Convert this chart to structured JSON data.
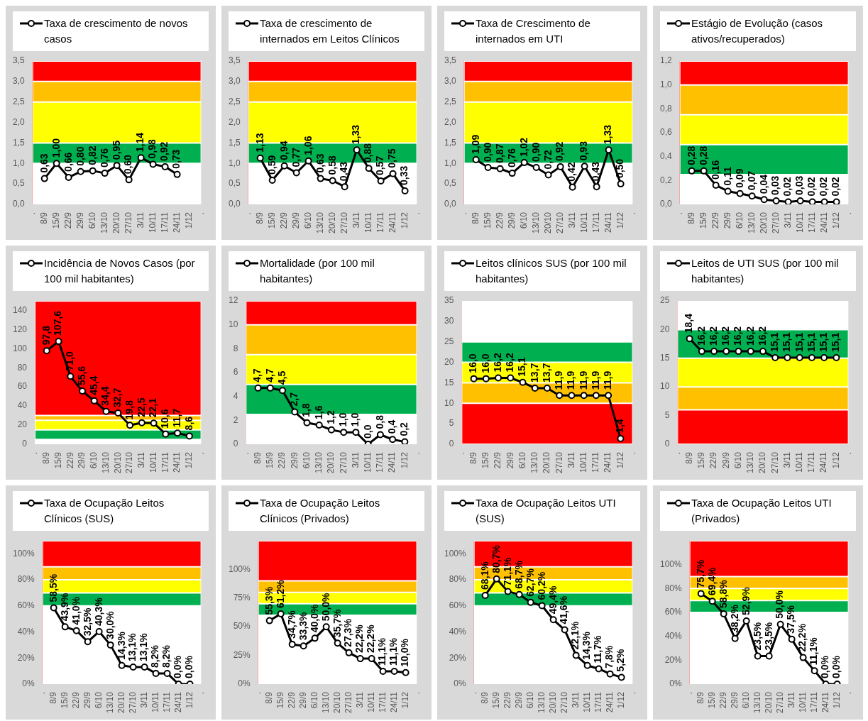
{
  "chart_data": [
    {
      "type": "line",
      "legend": "top",
      "marker": "circle",
      "categories": [
        ".",
        "8/9",
        "15/9",
        "22/9",
        "29/9",
        "6/10",
        "13/10",
        "20/10",
        "27/10",
        "3/11",
        "10/11",
        "17/11",
        "24/11",
        "1/12",
        "."
      ],
      "series": [
        {
          "name": "Taxa de crescimento de novos casos",
          "color": "#000000",
          "values": [
            null,
            0.63,
            1.0,
            0.66,
            0.8,
            0.82,
            0.76,
            0.95,
            0.6,
            1.14,
            0.98,
            0.92,
            0.73,
            null,
            null
          ],
          "value_labels": [
            null,
            "0,63",
            "1,00",
            "0,66",
            "0,80",
            "0,82",
            "0,76",
            "0,95",
            "0,60",
            "1,14",
            "0,98",
            "0,92",
            "0,73",
            null,
            null
          ]
        }
      ],
      "ylim": [
        0,
        3.5
      ],
      "yticks": [
        {
          "value": 0,
          "label": "0,0"
        },
        {
          "value": 0.5,
          "label": "0,5"
        },
        {
          "value": 1,
          "label": "1,0"
        },
        {
          "value": 1.5,
          "label": "1,5"
        },
        {
          "value": 2,
          "label": "2,0"
        },
        {
          "value": 2.5,
          "label": "2,5"
        },
        {
          "value": 3,
          "label": "3,0"
        },
        {
          "value": 3.5,
          "label": "3,5"
        }
      ],
      "bands": [
        {
          "axis": "y",
          "from": 3,
          "to": 3.5,
          "color": "#ff0000"
        },
        {
          "axis": "y",
          "from": 2.5,
          "to": 3,
          "color": "#ffc000"
        },
        {
          "axis": "y",
          "from": 1.5,
          "to": 2.5,
          "color": "#ffff00"
        },
        {
          "axis": "y",
          "from": 1,
          "to": 1.5,
          "color": "#00b050"
        }
      ]
    },
    {
      "type": "line",
      "legend": "top",
      "marker": "circle",
      "categories": [
        ".",
        "8/9",
        "15/9",
        "22/9",
        "29/9",
        "6/10",
        "13/10",
        "20/10",
        "27/10",
        "3/11",
        "10/11",
        "17/11",
        "24/11",
        "1/12",
        "."
      ],
      "series": [
        {
          "name": "Taxa de crescimento de internados em Leitos Clínicos",
          "color": "#000000",
          "values": [
            null,
            1.13,
            0.59,
            0.94,
            0.77,
            1.06,
            0.63,
            0.58,
            0.43,
            1.33,
            0.88,
            0.57,
            0.75,
            0.33,
            null
          ],
          "value_labels": [
            null,
            "1,13",
            "0,59",
            "0,94",
            "0,77",
            "1,06",
            "0,63",
            "0,58",
            "0,43",
            "1,33",
            "0,88",
            "0,57",
            "0,75",
            "0,33",
            null
          ]
        }
      ],
      "ylim": [
        0,
        3.5
      ],
      "yticks": [
        {
          "value": 0,
          "label": "0,0"
        },
        {
          "value": 0.5,
          "label": "0,5"
        },
        {
          "value": 1,
          "label": "1,0"
        },
        {
          "value": 1.5,
          "label": "1,5"
        },
        {
          "value": 2,
          "label": "2,0"
        },
        {
          "value": 2.5,
          "label": "2,5"
        },
        {
          "value": 3,
          "label": "3,0"
        },
        {
          "value": 3.5,
          "label": "3,5"
        }
      ],
      "bands": [
        {
          "axis": "y",
          "from": 3,
          "to": 3.5,
          "color": "#ff0000"
        },
        {
          "axis": "y",
          "from": 2.5,
          "to": 3,
          "color": "#ffc000"
        },
        {
          "axis": "y",
          "from": 1.5,
          "to": 2.5,
          "color": "#ffff00"
        },
        {
          "axis": "y",
          "from": 1,
          "to": 1.5,
          "color": "#00b050"
        }
      ]
    },
    {
      "type": "line",
      "legend": "top",
      "marker": "circle",
      "categories": [
        ".",
        "8/9",
        "15/9",
        "22/9",
        "29/9",
        "6/10",
        "13/10",
        "20/10",
        "27/10",
        "3/11",
        "10/11",
        "17/11",
        "24/11",
        "1/12",
        "."
      ],
      "series": [
        {
          "name": "Taxa de Crescimento de internados em UTI",
          "color": "#000000",
          "values": [
            null,
            1.09,
            0.9,
            0.87,
            0.76,
            1.02,
            0.9,
            0.72,
            0.92,
            0.42,
            0.93,
            0.43,
            1.33,
            0.5,
            null
          ],
          "value_labels": [
            null,
            "1,09",
            "0,90",
            "0,87",
            "0,76",
            "1,02",
            "0,90",
            "0,72",
            "0,92",
            "0,42",
            "0,93",
            "0,43",
            "1,33",
            "0,50",
            null
          ]
        }
      ],
      "ylim": [
        0,
        3.5
      ],
      "yticks": [
        {
          "value": 0,
          "label": "0,0"
        },
        {
          "value": 0.5,
          "label": "0,5"
        },
        {
          "value": 1,
          "label": "1,0"
        },
        {
          "value": 1.5,
          "label": "1,5"
        },
        {
          "value": 2,
          "label": "2,0"
        },
        {
          "value": 2.5,
          "label": "2,5"
        },
        {
          "value": 3,
          "label": "3,0"
        },
        {
          "value": 3.5,
          "label": "3,5"
        }
      ],
      "bands": [
        {
          "axis": "y",
          "from": 3,
          "to": 3.5,
          "color": "#ff0000"
        },
        {
          "axis": "y",
          "from": 2.5,
          "to": 3,
          "color": "#ffc000"
        },
        {
          "axis": "y",
          "from": 1.5,
          "to": 2.5,
          "color": "#ffff00"
        },
        {
          "axis": "y",
          "from": 1,
          "to": 1.5,
          "color": "#00b050"
        }
      ]
    },
    {
      "type": "line",
      "legend": "top",
      "marker": "circle",
      "categories": [
        ".",
        "8/9",
        "15/9",
        "22/9",
        "29/9",
        "6/10",
        "13/10",
        "20/10",
        "27/10",
        "3/11",
        "10/11",
        "17/11",
        "24/11",
        "1/12",
        "."
      ],
      "series": [
        {
          "name": "Estágio de Evolução (casos ativos/recuperados)",
          "color": "#000000",
          "values": [
            null,
            0.28,
            0.28,
            0.16,
            0.11,
            0.09,
            0.07,
            0.04,
            0.03,
            0.02,
            0.03,
            0.02,
            0.02,
            0.02,
            null
          ],
          "value_labels": [
            null,
            "0,28",
            "0,28",
            "0,16",
            "0,11",
            "0,09",
            "0,07",
            "0,04",
            "0,03",
            "0,02",
            "0,03",
            "0,02",
            "0,02",
            "0,02",
            null
          ]
        }
      ],
      "ylim": [
        0,
        1.2
      ],
      "yticks": [
        {
          "value": 0,
          "label": "0,0"
        },
        {
          "value": 0.2,
          "label": "0,2"
        },
        {
          "value": 0.4,
          "label": "0,4"
        },
        {
          "value": 0.6,
          "label": "0,6"
        },
        {
          "value": 0.8,
          "label": "0,8"
        },
        {
          "value": 1,
          "label": "1,0"
        },
        {
          "value": 1.2,
          "label": "1,2"
        }
      ],
      "bands": [
        {
          "axis": "y",
          "from": 1,
          "to": 1.2,
          "color": "#ff0000"
        },
        {
          "axis": "y",
          "from": 0.75,
          "to": 1,
          "color": "#ffc000"
        },
        {
          "axis": "y",
          "from": 0.5,
          "to": 0.75,
          "color": "#ffff00"
        },
        {
          "axis": "y",
          "from": 0.25,
          "to": 0.5,
          "color": "#00b050"
        }
      ]
    },
    {
      "type": "line",
      "legend": "top",
      "marker": "circle",
      "categories": [
        ".",
        "8/9",
        "15/9",
        "22/9",
        "29/9",
        "6/10",
        "13/10",
        "20/10",
        "27/10",
        "3/11",
        "10/11",
        "17/11",
        "24/11",
        "1/12",
        "."
      ],
      "series": [
        {
          "name": "Incidência de Novos Casos (por 100 mil habitantes)",
          "color": "#000000",
          "values": [
            null,
            97.8,
            107.6,
            71.0,
            55.6,
            45.4,
            34.4,
            32.7,
            19.8,
            22.5,
            22.1,
            10.6,
            11.7,
            8.6,
            null
          ],
          "value_labels": [
            null,
            "97,8",
            "107,6",
            "71,0",
            "55,6",
            "45,4",
            "34,4",
            "32,7",
            "19,8",
            "22,5",
            "22,1",
            "10,6",
            "11,7",
            "8,6",
            null
          ]
        }
      ],
      "ylim": [
        0,
        150
      ],
      "yticks": [
        0,
        20,
        40,
        60,
        80,
        100,
        120,
        140
      ],
      "bands": [
        {
          "axis": "y",
          "from": 30,
          "to": 150,
          "color": "#ff0000"
        },
        {
          "axis": "y",
          "from": 25,
          "to": 30,
          "color": "#ffc000"
        },
        {
          "axis": "y",
          "from": 15,
          "to": 25,
          "color": "#ffff00"
        },
        {
          "axis": "y",
          "from": 5,
          "to": 15,
          "color": "#00b050"
        }
      ]
    },
    {
      "type": "line",
      "legend": "top",
      "marker": "circle",
      "categories": [
        ".",
        "8/9",
        "15/9",
        "22/9",
        "29/9",
        "6/10",
        "13/10",
        "20/10",
        "27/10",
        "3/11",
        "10/11",
        "17/11",
        "24/11",
        "1/12",
        "."
      ],
      "series": [
        {
          "name": "Mortalidade (por 100 mil habitantes)",
          "color": "#000000",
          "values": [
            null,
            4.7,
            4.7,
            4.5,
            2.7,
            1.8,
            1.6,
            1.2,
            1.0,
            1.0,
            0.0,
            0.8,
            0.4,
            0.2,
            null
          ],
          "value_labels": [
            null,
            "4,7",
            "4,7",
            "4,5",
            "2,7",
            "1,8",
            "1,6",
            "1,2",
            "1,0",
            "1,0",
            "0,0",
            "0,8",
            "0,4",
            "0,2",
            null
          ]
        }
      ],
      "ylim": [
        0,
        12
      ],
      "yticks": [
        0,
        2,
        4,
        6,
        8,
        10,
        12
      ],
      "bands": [
        {
          "axis": "y",
          "from": 10,
          "to": 12,
          "color": "#ff0000"
        },
        {
          "axis": "y",
          "from": 7.5,
          "to": 10,
          "color": "#ffc000"
        },
        {
          "axis": "y",
          "from": 5,
          "to": 7.5,
          "color": "#ffff00"
        },
        {
          "axis": "y",
          "from": 2.5,
          "to": 5,
          "color": "#00b050"
        }
      ]
    },
    {
      "type": "line",
      "legend": "top",
      "marker": "circle",
      "categories": [
        ".",
        "8/9",
        "15/9",
        "22/9",
        "29/9",
        "6/10",
        "13/10",
        "20/10",
        "27/10",
        "3/11",
        "10/11",
        "17/11",
        "24/11",
        "1/12",
        "."
      ],
      "series": [
        {
          "name": "Leitos clínicos SUS (por 100 mil habitantes)",
          "color": "#000000",
          "values": [
            null,
            16.0,
            16.0,
            16.2,
            16.2,
            15.1,
            13.7,
            13.7,
            11.9,
            11.9,
            11.9,
            11.9,
            11.9,
            1.4,
            null
          ],
          "value_labels": [
            null,
            "16,0",
            "16,0",
            "16,2",
            "16,2",
            "15,1",
            "13,7",
            "13,7",
            "11,9",
            "11,9",
            "11,9",
            "11,9",
            "11,9",
            "1,4",
            null
          ]
        }
      ],
      "ylim": [
        0,
        35
      ],
      "yticks": [
        0,
        5,
        10,
        15,
        20,
        25,
        30,
        35
      ],
      "bands": [
        {
          "axis": "y",
          "from": 20,
          "to": 25,
          "color": "#00b050"
        },
        {
          "axis": "y",
          "from": 15,
          "to": 20,
          "color": "#ffff00"
        },
        {
          "axis": "y",
          "from": 10,
          "to": 15,
          "color": "#ffc000"
        },
        {
          "axis": "y",
          "from": 0,
          "to": 10,
          "color": "#ff0000"
        }
      ]
    },
    {
      "type": "line",
      "legend": "top",
      "marker": "circle",
      "categories": [
        ".",
        "8/9",
        "15/9",
        "22/9",
        "29/9",
        "6/10",
        "13/10",
        "20/10",
        "27/10",
        "3/11",
        "10/11",
        "17/11",
        "24/11",
        "1/12",
        "."
      ],
      "series": [
        {
          "name": "Leitos de UTI SUS (por 100 mil habitantes)",
          "color": "#000000",
          "values": [
            null,
            18.4,
            16.2,
            16.2,
            16.2,
            16.2,
            16.2,
            16.2,
            15.1,
            15.1,
            15.1,
            15.1,
            15.1,
            15.1,
            null
          ],
          "value_labels": [
            null,
            "18,4",
            "16,2",
            "16,2",
            "16,2",
            "16,2",
            "16,2",
            "16,2",
            "15,1",
            "15,1",
            "15,1",
            "15,1",
            "15,1",
            "15,1",
            null
          ]
        }
      ],
      "ylim": [
        0,
        25
      ],
      "yticks": [
        0,
        5,
        10,
        15,
        20,
        25
      ],
      "bands": [
        {
          "axis": "y",
          "from": 15,
          "to": 20,
          "color": "#00b050"
        },
        {
          "axis": "y",
          "from": 10,
          "to": 15,
          "color": "#ffff00"
        },
        {
          "axis": "y",
          "from": 6,
          "to": 10,
          "color": "#ffc000"
        },
        {
          "axis": "y",
          "from": 0,
          "to": 6,
          "color": "#ff0000"
        }
      ]
    },
    {
      "type": "line",
      "legend": "top",
      "marker": "circle",
      "categories": [
        ".",
        "8/9",
        "15/9",
        "22/9",
        "29/9",
        "6/10",
        "13/10",
        "20/10",
        "27/10",
        "3/11",
        "10/11",
        "17/11",
        "24/11",
        "1/12",
        "."
      ],
      "series": [
        {
          "name": "Taxa de Ocupação Leitos Clínicos (SUS)",
          "color": "#000000",
          "values": [
            null,
            58.5,
            43.9,
            41.0,
            32.5,
            40.3,
            30.0,
            14.3,
            13.1,
            13.1,
            8.2,
            8.2,
            0.0,
            0.0,
            null
          ],
          "value_labels": [
            null,
            "58,5%",
            "43,9%",
            "41,0%",
            "32,5%",
            "40,3%",
            "30,0%",
            "14,3%",
            "13,1%",
            "13,1%",
            "8,2%",
            "8,2%",
            "0,0%",
            "0,0%",
            null
          ]
        }
      ],
      "ylim": [
        0,
        110
      ],
      "yticks": [
        {
          "value": 0,
          "label": "0%"
        },
        {
          "value": 20,
          "label": "20%"
        },
        {
          "value": 40,
          "label": "40%"
        },
        {
          "value": 60,
          "label": "60%"
        },
        {
          "value": 80,
          "label": "80%"
        },
        {
          "value": 100,
          "label": "100%"
        }
      ],
      "bands": [
        {
          "axis": "y",
          "from": 90,
          "to": 110,
          "color": "#ff0000"
        },
        {
          "axis": "y",
          "from": 80,
          "to": 90,
          "color": "#ffc000"
        },
        {
          "axis": "y",
          "from": 70,
          "to": 80,
          "color": "#ffff00"
        },
        {
          "axis": "y",
          "from": 60,
          "to": 70,
          "color": "#00b050"
        }
      ]
    },
    {
      "type": "line",
      "legend": "top",
      "marker": "circle",
      "categories": [
        ".",
        "8/9",
        "15/9",
        "22/9",
        "29/9",
        "6/10",
        "13/10",
        "20/10",
        "27/10",
        "3/11",
        "10/11",
        "17/11",
        "24/11",
        "1/12",
        "."
      ],
      "series": [
        {
          "name": "Taxa de Ocupação Leitos Clínicos (Privados)",
          "color": "#000000",
          "values": [
            null,
            55.3,
            61.2,
            34.7,
            33.3,
            40.0,
            50.0,
            35.7,
            27.3,
            22.2,
            22.2,
            11.1,
            11.1,
            10.0,
            null
          ],
          "value_labels": [
            null,
            "55,3%",
            "61,2%",
            "34,7%",
            "33,3%",
            "40,0%",
            "50,0%",
            "35,7%",
            "27,3%",
            "22,2%",
            "22,2%",
            "11,1%",
            "11,1%",
            "10,0%",
            null
          ]
        }
      ],
      "ylim": [
        0,
        125
      ],
      "yticks": [
        {
          "value": 0,
          "label": "0%"
        },
        {
          "value": 25,
          "label": "25%"
        },
        {
          "value": 50,
          "label": "50%"
        },
        {
          "value": 75,
          "label": "75%"
        },
        {
          "value": 100,
          "label": "100%"
        }
      ],
      "bands": [
        {
          "axis": "y",
          "from": 90,
          "to": 125,
          "color": "#ff0000"
        },
        {
          "axis": "y",
          "from": 80,
          "to": 90,
          "color": "#ffc000"
        },
        {
          "axis": "y",
          "from": 70,
          "to": 80,
          "color": "#ffff00"
        },
        {
          "axis": "y",
          "from": 60,
          "to": 70,
          "color": "#00b050"
        }
      ]
    },
    {
      "type": "line",
      "legend": "top",
      "marker": "circle",
      "categories": [
        ".",
        "8/9",
        "15/9",
        "22/9",
        "29/9",
        "6/10",
        "13/10",
        "20/10",
        "27/10",
        "3/11",
        "10/11",
        "17/11",
        "24/11",
        "1/12",
        "."
      ],
      "series": [
        {
          "name": "Taxa de Ocupação Leitos UTI (SUS)",
          "color": "#000000",
          "values": [
            null,
            68.1,
            80.7,
            71.1,
            68.7,
            62.7,
            60.2,
            49.4,
            41.6,
            22.1,
            14.3,
            11.7,
            7.8,
            5.2,
            null
          ],
          "value_labels": [
            null,
            "68,1%",
            "80,7%",
            "71,1%",
            "68,7%",
            "62,7%",
            "60,2%",
            "49,4%",
            "41,6%",
            "22,1%",
            "14,3%",
            "11,7%",
            "7,8%",
            "5,2%",
            null
          ]
        }
      ],
      "ylim": [
        0,
        110
      ],
      "yticks": [
        {
          "value": 0,
          "label": "0%"
        },
        {
          "value": 20,
          "label": "20%"
        },
        {
          "value": 40,
          "label": "40%"
        },
        {
          "value": 60,
          "label": "60%"
        },
        {
          "value": 80,
          "label": "80%"
        },
        {
          "value": 100,
          "label": "100%"
        }
      ],
      "bands": [
        {
          "axis": "y",
          "from": 90,
          "to": 110,
          "color": "#ff0000"
        },
        {
          "axis": "y",
          "from": 80,
          "to": 90,
          "color": "#ffc000"
        },
        {
          "axis": "y",
          "from": 70,
          "to": 80,
          "color": "#ffff00"
        },
        {
          "axis": "y",
          "from": 60,
          "to": 70,
          "color": "#00b050"
        }
      ]
    },
    {
      "type": "line",
      "legend": "top",
      "marker": "circle",
      "categories": [
        ".",
        "8/9",
        "15/9",
        "22/9",
        "29/9",
        "6/10",
        "13/10",
        "20/10",
        "27/10",
        "3/11",
        "10/11",
        "17/11",
        "24/11",
        "1/12",
        "."
      ],
      "series": [
        {
          "name": "Taxa de Ocupação Leitos UTI (Privados)",
          "color": "#000000",
          "values": [
            null,
            75.7,
            69.4,
            58.8,
            38.2,
            52.9,
            23.5,
            23.5,
            50.0,
            37.5,
            22.2,
            11.1,
            0.0,
            0.0,
            null
          ],
          "value_labels": [
            null,
            "75,7%",
            "69,4%",
            "58,8%",
            "38,2%",
            "52,9%",
            "23,5%",
            "23,5%",
            "50,0%",
            "37,5%",
            "22,2%",
            "11,1%",
            "0,0%",
            "0,0%",
            null
          ]
        }
      ],
      "ylim": [
        0,
        120
      ],
      "yticks": [
        {
          "value": 0,
          "label": "0%"
        },
        {
          "value": 20,
          "label": "20%"
        },
        {
          "value": 40,
          "label": "40%"
        },
        {
          "value": 60,
          "label": "60%"
        },
        {
          "value": 80,
          "label": "80%"
        },
        {
          "value": 100,
          "label": "100%"
        }
      ],
      "bands": [
        {
          "axis": "y",
          "from": 90,
          "to": 120,
          "color": "#ff0000"
        },
        {
          "axis": "y",
          "from": 80,
          "to": 90,
          "color": "#ffc000"
        },
        {
          "axis": "y",
          "from": 70,
          "to": 80,
          "color": "#ffff00"
        },
        {
          "axis": "y",
          "from": 60,
          "to": 70,
          "color": "#00b050"
        }
      ]
    }
  ]
}
